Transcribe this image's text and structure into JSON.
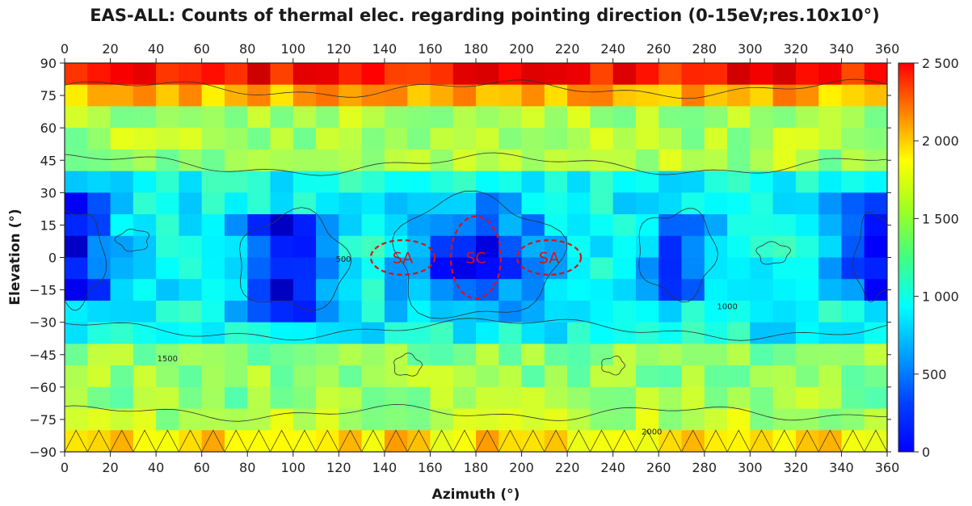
{
  "chart_data": {
    "type": "heatmap",
    "title": "EAS-ALL: Counts of thermal elec. regarding pointing direction (0-15eV;res.10x10°)",
    "xlabel": "Azimuth (°)",
    "ylabel": "Elevation (°)",
    "xlim": [
      0,
      360
    ],
    "ylim": [
      -90,
      90
    ],
    "x_ticks": [
      "0",
      "20",
      "40",
      "60",
      "80",
      "100",
      "120",
      "140",
      "160",
      "180",
      "200",
      "220",
      "240",
      "260",
      "280",
      "300",
      "320",
      "340",
      "360"
    ],
    "x_ticks_top": [
      "0",
      "20",
      "40",
      "60",
      "80",
      "100",
      "120",
      "140",
      "160",
      "180",
      "200",
      "220",
      "240",
      "260",
      "280",
      "300",
      "320",
      "340",
      "360"
    ],
    "y_ticks": [
      "90",
      "75",
      "60",
      "45",
      "30",
      "15",
      "0",
      "−15",
      "−30",
      "−45",
      "−60",
      "−75",
      "−90"
    ],
    "colorbar": {
      "range": [
        0,
        2500
      ],
      "ticks": [
        "0",
        "500",
        "1 000",
        "1 500",
        "2 000",
        "2 500"
      ],
      "colormap": "jet"
    },
    "resolution_deg": [
      10,
      10
    ],
    "row_elevation_centers": [
      85,
      75,
      65,
      55,
      45,
      35,
      25,
      15,
      5,
      -5,
      -15,
      -25,
      -35,
      -45,
      -55,
      -65,
      -75,
      -85
    ],
    "column_azimuth_starts": [
      0,
      10,
      20,
      30,
      40,
      50,
      60,
      70,
      80,
      90,
      100,
      110,
      120,
      130,
      140,
      150,
      160,
      170,
      180,
      190,
      200,
      210,
      220,
      230,
      240,
      250,
      260,
      270,
      280,
      290,
      300,
      310,
      320,
      330,
      340,
      350
    ],
    "contour_labels": [
      "500",
      "1000",
      "1500",
      "2000"
    ],
    "annotations": [
      {
        "text": "SA",
        "azimuth": 148,
        "elevation": 0
      },
      {
        "text": "SC",
        "azimuth": 180,
        "elevation": 0
      },
      {
        "text": "SA",
        "azimuth": 212,
        "elevation": 0
      }
    ],
    "grid": false
  }
}
